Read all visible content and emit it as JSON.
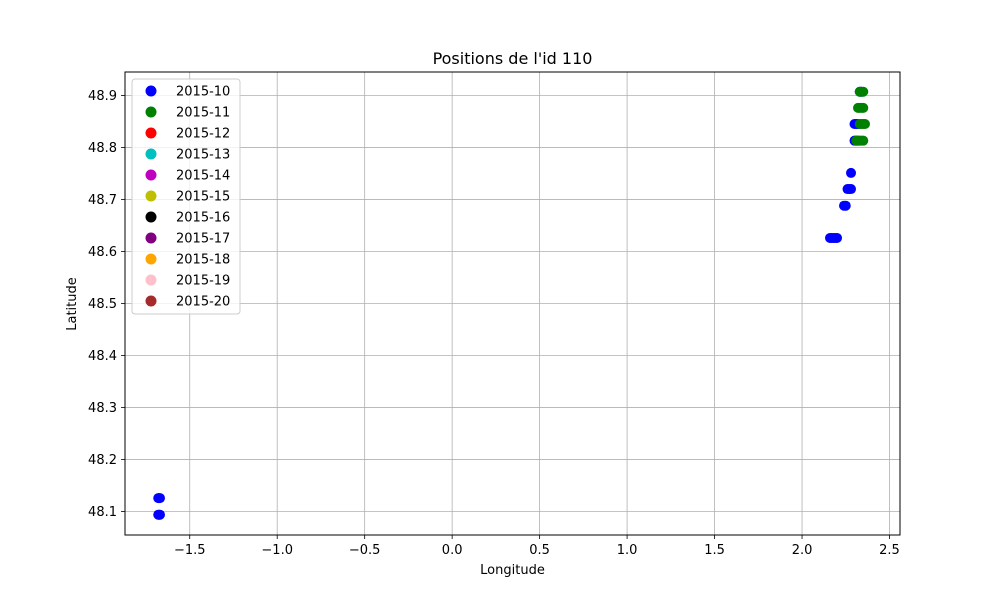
{
  "chart_data": {
    "type": "scatter",
    "title": "Positions de l'id 110",
    "xlabel": "Longitude",
    "ylabel": "Latitude",
    "xlim": [
      -1.87,
      2.56
    ],
    "ylim": [
      48.055,
      48.945
    ],
    "xticks": [
      -1.5,
      -1.0,
      -0.5,
      0.0,
      0.5,
      1.0,
      1.5,
      2.0,
      2.5
    ],
    "xtick_labels": [
      "−1.5",
      "−1.0",
      "−0.5",
      "0.0",
      "0.5",
      "1.0",
      "1.5",
      "2.0",
      "2.5"
    ],
    "yticks": [
      48.1,
      48.2,
      48.3,
      48.4,
      48.5,
      48.6,
      48.7,
      48.8,
      48.9
    ],
    "ytick_labels": [
      "48.1",
      "48.2",
      "48.3",
      "48.4",
      "48.5",
      "48.6",
      "48.7",
      "48.8",
      "48.9"
    ],
    "grid": true,
    "legend_position": "upper-left",
    "series": [
      {
        "name": "2015-10",
        "color": "#0000ff",
        "points": [
          [
            -1.68,
            48.094
          ],
          [
            -1.675,
            48.094
          ],
          [
            -1.67,
            48.094
          ],
          [
            -1.68,
            48.126
          ],
          [
            -1.675,
            48.126
          ],
          [
            -1.67,
            48.126
          ],
          [
            2.16,
            48.626
          ],
          [
            2.17,
            48.626
          ],
          [
            2.18,
            48.626
          ],
          [
            2.19,
            48.626
          ],
          [
            2.2,
            48.626
          ],
          [
            2.24,
            48.688
          ],
          [
            2.25,
            48.688
          ],
          [
            2.26,
            48.72
          ],
          [
            2.27,
            48.72
          ],
          [
            2.28,
            48.72
          ],
          [
            2.28,
            48.751
          ],
          [
            2.3,
            48.813
          ],
          [
            2.31,
            48.813
          ],
          [
            2.32,
            48.813
          ],
          [
            2.3,
            48.845
          ],
          [
            2.31,
            48.845
          ],
          [
            2.32,
            48.845
          ],
          [
            2.33,
            48.907
          ],
          [
            2.34,
            48.907
          ]
        ]
      },
      {
        "name": "2015-11",
        "color": "#008000",
        "points": [
          [
            2.31,
            48.813
          ],
          [
            2.32,
            48.813
          ],
          [
            2.33,
            48.813
          ],
          [
            2.34,
            48.813
          ],
          [
            2.35,
            48.813
          ],
          [
            2.33,
            48.845
          ],
          [
            2.34,
            48.845
          ],
          [
            2.35,
            48.845
          ],
          [
            2.36,
            48.845
          ],
          [
            2.32,
            48.876
          ],
          [
            2.33,
            48.876
          ],
          [
            2.34,
            48.876
          ],
          [
            2.35,
            48.876
          ],
          [
            2.33,
            48.907
          ],
          [
            2.34,
            48.907
          ],
          [
            2.35,
            48.907
          ]
        ]
      },
      {
        "name": "2015-12",
        "color": "#ff0000",
        "points": []
      },
      {
        "name": "2015-13",
        "color": "#00bfbf",
        "points": []
      },
      {
        "name": "2015-14",
        "color": "#bf00bf",
        "points": []
      },
      {
        "name": "2015-15",
        "color": "#bfbf00",
        "points": []
      },
      {
        "name": "2015-16",
        "color": "#000000",
        "points": []
      },
      {
        "name": "2015-17",
        "color": "#800080",
        "points": []
      },
      {
        "name": "2015-18",
        "color": "#ffa500",
        "points": []
      },
      {
        "name": "2015-19",
        "color": "#ffc0cb",
        "points": []
      },
      {
        "name": "2015-20",
        "color": "#a52a2a",
        "points": []
      }
    ]
  }
}
